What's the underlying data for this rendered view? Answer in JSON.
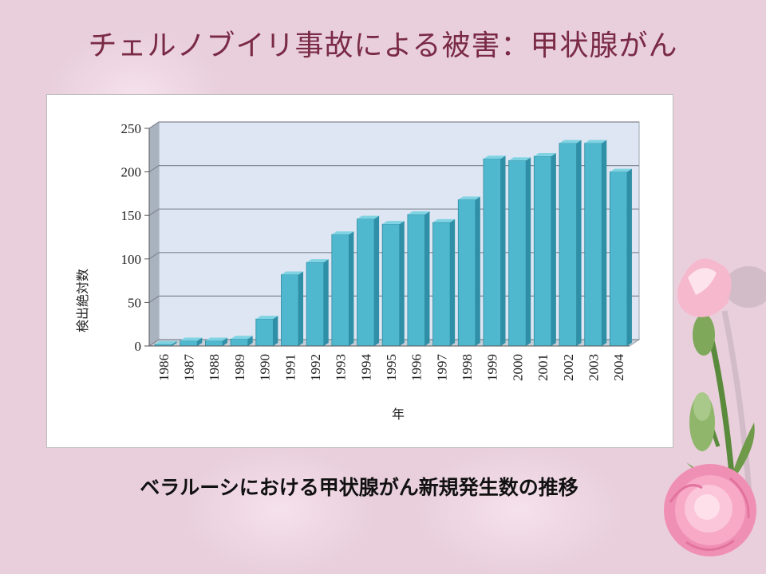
{
  "slide": {
    "title": "チェルノブイリ事故による被害：甲状腺がん",
    "caption": "ベラルーシにおける甲状腺がん新規発生数の推移"
  },
  "colors": {
    "background": "#e9cfdc",
    "title": "#7a2a45",
    "bar_front": "#4fb8cf",
    "bar_top": "#7fd3e3",
    "bar_side": "#2f8fa6",
    "wall": "#dde6f2"
  },
  "chart_data": {
    "type": "bar",
    "title": "",
    "xlabel": "年",
    "ylabel": "検出絶対数",
    "ylim": [
      0,
      250
    ],
    "yticks": [
      0,
      50,
      100,
      150,
      200,
      250
    ],
    "grid": true,
    "categories": [
      "1986",
      "1987",
      "1988",
      "1989",
      "1990",
      "1991",
      "1992",
      "1993",
      "1994",
      "1995",
      "1996",
      "1997",
      "1998",
      "1999",
      "2000",
      "2001",
      "2002",
      "2003",
      "2004"
    ],
    "values": [
      2,
      6,
      6,
      8,
      31,
      82,
      96,
      128,
      146,
      140,
      151,
      142,
      168,
      215,
      213,
      218,
      233,
      233,
      200
    ]
  },
  "decoration": {
    "flower_icon": "pink-carnation-icon"
  }
}
